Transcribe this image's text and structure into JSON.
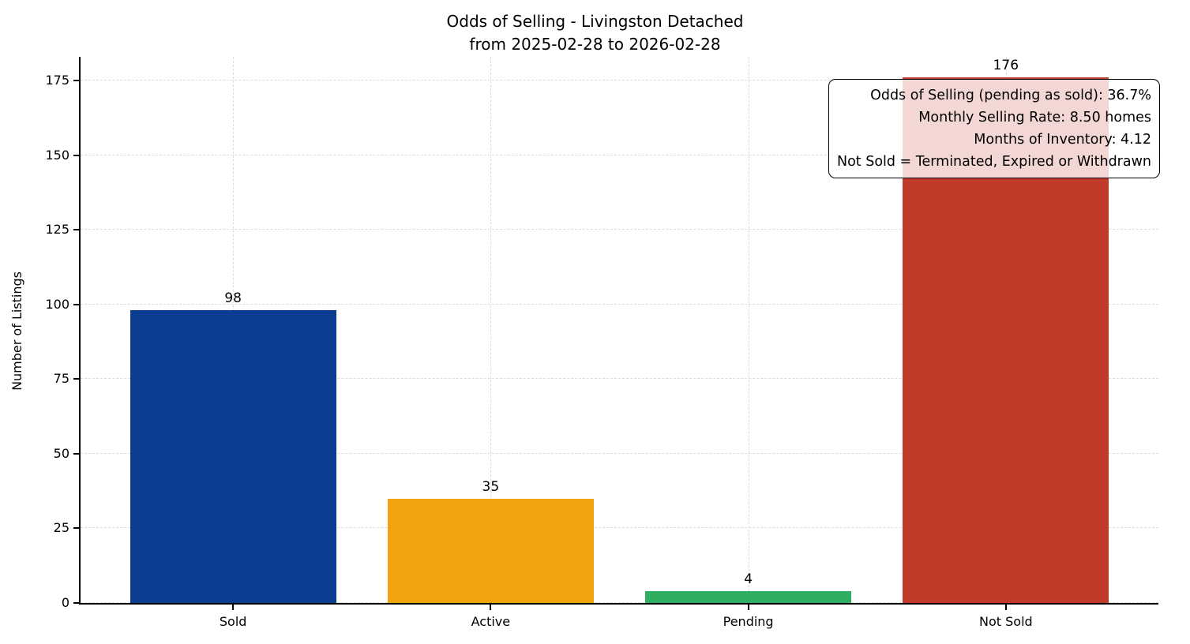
{
  "chart_data": {
    "type": "bar",
    "title": "Odds of Selling - Livingston Detached",
    "subtitle": "from 2025-02-28 to 2026-02-28",
    "ylabel": "Number of Listings",
    "xlabel": "",
    "categories": [
      "Sold",
      "Active",
      "Pending",
      "Not Sold"
    ],
    "values": [
      98,
      35,
      4,
      176
    ],
    "colors": [
      "#0b3d91",
      "#f2a20c",
      "#2fad61",
      "#c13b2a"
    ],
    "yticks": [
      0,
      25,
      50,
      75,
      100,
      125,
      150,
      175
    ],
    "ylim": [
      0,
      183
    ],
    "grid": "dashed",
    "legend_position": "none",
    "annotation": {
      "position": "top-right",
      "lines": [
        "Odds of Selling (pending as sold): 36.7%",
        "Monthly Selling Rate: 8.50 homes",
        "Months of Inventory: 4.12",
        "Not Sold = Terminated, Expired or Withdrawn"
      ]
    }
  }
}
